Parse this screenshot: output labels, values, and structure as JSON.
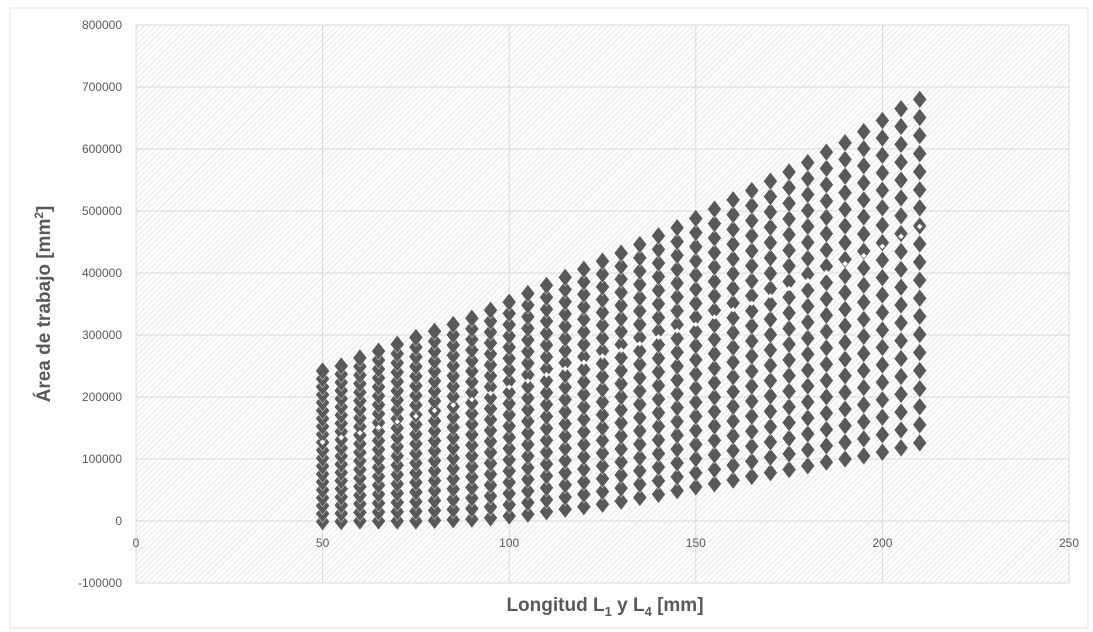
{
  "chart_data": {
    "type": "scatter",
    "title": "",
    "xlabel": "Longitud L1 y L4 [mm]",
    "xlabel_parts": {
      "prefix": "Longitud L",
      "sub1": "1",
      "mid": " y L",
      "sub2": "4",
      "suffix": " [mm]"
    },
    "ylabel": "Área de trabajo [mm2]",
    "ylabel_parts": {
      "main": "Área de trabajo [mm",
      "sup": "2",
      "suffix": "]"
    },
    "xlim": [
      0,
      250
    ],
    "ylim": [
      -100000,
      800000
    ],
    "x_ticks": [
      "0",
      "50",
      "100",
      "150",
      "200",
      "250"
    ],
    "y_ticks": [
      "-100000",
      "0",
      "100000",
      "200000",
      "300000",
      "400000",
      "500000",
      "600000",
      "700000",
      "800000"
    ],
    "grid": true,
    "plot_background": "hatched",
    "marker": "diamond",
    "marker_color": "#595959",
    "highlight_color": "#ffffff",
    "series": [
      {
        "points_per_column": 20,
        "x": [
          50,
          55,
          60,
          65,
          70,
          75,
          80,
          85,
          90,
          95,
          100,
          105,
          110,
          115,
          120,
          125,
          130,
          135,
          140,
          145,
          150,
          155,
          160,
          165,
          170,
          175,
          180,
          185,
          190,
          195,
          200,
          205,
          210
        ],
        "y_min": [
          -1000,
          -1000,
          0,
          0,
          0,
          0,
          1000,
          2000,
          3000,
          5000,
          8000,
          11000,
          15000,
          19000,
          23000,
          27000,
          32000,
          38000,
          43000,
          49000,
          55000,
          60000,
          66000,
          72000,
          78000,
          83000,
          89000,
          95000,
          100000,
          105000,
          111000,
          118000,
          126000
        ],
        "y_max": [
          242000,
          250000,
          263000,
          274000,
          285000,
          296000,
          306000,
          317000,
          327000,
          340000,
          353000,
          367000,
          380000,
          393000,
          406000,
          419000,
          432000,
          446000,
          460000,
          473000,
          488000,
          503000,
          518000,
          533000,
          548000,
          563000,
          578000,
          595000,
          610000,
          628000,
          646000,
          665000,
          680000
        ],
        "y_highlight": [
          127000,
          135000,
          142000,
          151000,
          160000,
          169000,
          178000,
          187000,
          196000,
          206000,
          216000,
          226000,
          236000,
          246000,
          256000,
          266000,
          276000,
          286000,
          297000,
          307000,
          317000,
          329000,
          341000,
          351000,
          363000,
          375000,
          388000,
          401000,
          415000,
          428000,
          443000,
          459000,
          475000
        ]
      }
    ]
  }
}
